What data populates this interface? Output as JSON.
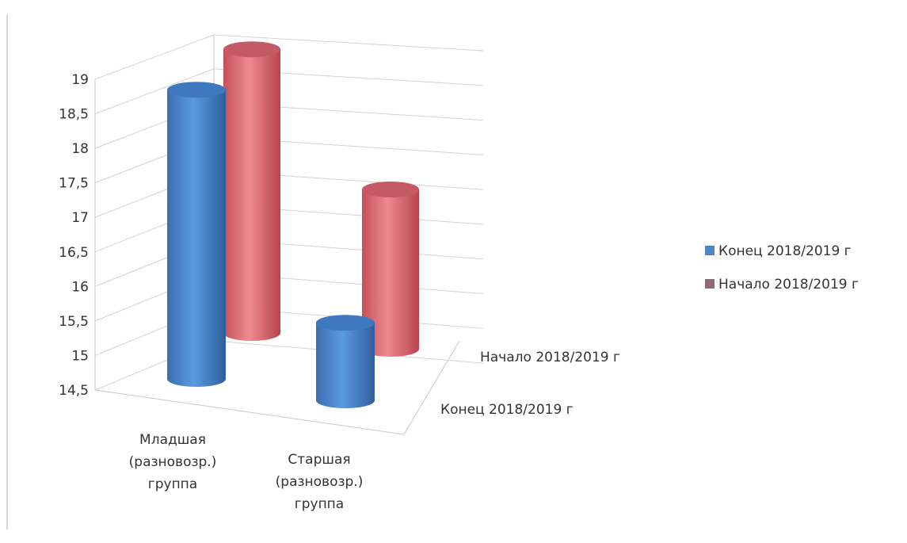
{
  "chart_data": {
    "type": "bar",
    "subtype": "3d-cylinder",
    "title": "",
    "categories": [
      "Младшая (разновозр.) группа",
      "Старшая (разновозр.) группа"
    ],
    "category_lines": [
      [
        "Младшая",
        "(разновозр.)",
        "группа"
      ],
      [
        "Старшая",
        "(разновозр.)",
        "группа"
      ]
    ],
    "series": [
      {
        "name": "Конец 2018/2019 г",
        "values": [
          18.9,
          15.6
        ],
        "color": "#4a86c8"
      },
      {
        "name": "Начало 2018/2019 г",
        "values": [
          19.1,
          17.2
        ],
        "color": "#d9646a"
      }
    ],
    "ylim": [
      14.5,
      19
    ],
    "yticks": [
      "14,5",
      "15",
      "15,5",
      "16",
      "16,5",
      "17",
      "17,5",
      "18",
      "18,5",
      "19"
    ],
    "depth_labels": [
      "Конец 2018/2019 г",
      "Начало 2018/2019 г"
    ],
    "legend": {
      "position": "right",
      "items": [
        {
          "label": "Конец 2018/2019 г",
          "color": "#4a86c8"
        },
        {
          "label": "Начало 2018/2019 г",
          "color": "#8a6a78"
        }
      ]
    },
    "grid": true
  }
}
